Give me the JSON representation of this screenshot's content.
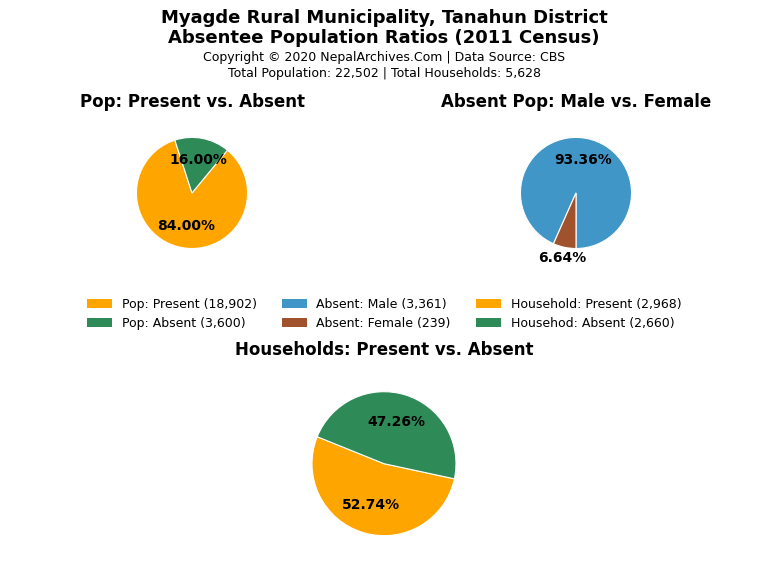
{
  "title": "Myagde Rural Municipality, Tanahun District",
  "subtitle": "Absentee Population Ratios (2011 Census)",
  "annotations": [
    "Copyright © 2020 NepalArchives.Com | Data Source: CBS",
    "Total Population: 22,502 | Total Households: 5,628"
  ],
  "legend": "center",
  "chart_data": [
    {
      "type": "pie",
      "title": "Pop: Present vs. Absent",
      "categories": [
        "Pop: Present (18,902)",
        "Pop: Absent (3,600)"
      ],
      "values": [
        84.0,
        16.0
      ],
      "value_labels": [
        "84.00%",
        "16.00%"
      ],
      "colors": [
        "#FFA500",
        "#2E8B57"
      ],
      "data_labels": true
    },
    {
      "type": "pie",
      "title": "Absent Pop: Male vs. Female",
      "categories": [
        "Absent: Male (3,361)",
        "Absent: Female (239)"
      ],
      "values": [
        93.36,
        6.64
      ],
      "value_labels": [
        "93.36%",
        "6.64%"
      ],
      "colors": [
        "#4196C8",
        "#A0522D"
      ],
      "data_labels": true
    },
    {
      "type": "pie",
      "title": "Households: Present vs. Absent",
      "categories": [
        "Household: Present (2,968)",
        "Househod: Absent (2,660)"
      ],
      "values": [
        52.74,
        47.26
      ],
      "value_labels": [
        "52.74%",
        "47.26%"
      ],
      "colors": [
        "#FFA500",
        "#2E8B57"
      ],
      "data_labels": true
    }
  ]
}
